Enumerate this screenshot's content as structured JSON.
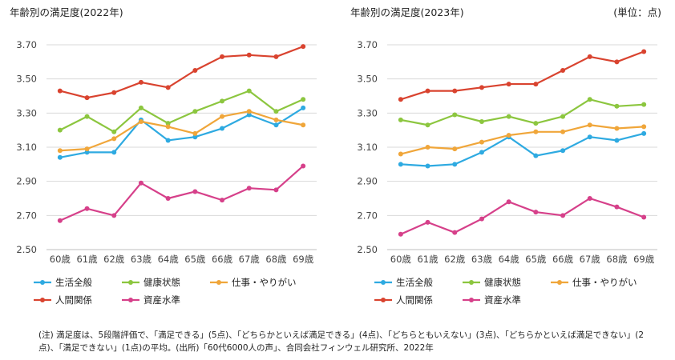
{
  "unit_label": "(単位：点)",
  "note": "(注)  満足度は、5段階評価で、「満足できる」(5点)、「どちらかといえば満足できる」(4点)、「どちらともいえない」(3点)、「どちらかといえば満足できない」(2点)、「満足できない」(1点)の平均。(出所)「60代6000人の声」、合同会社フィンウェル研究所、2022年",
  "chart_data": [
    {
      "type": "line",
      "title": "年齢別の満足度(2022年)",
      "xlabel": "",
      "ylabel": "",
      "categories": [
        "60歳",
        "61歳",
        "62歳",
        "63歳",
        "64歳",
        "65歳",
        "66歳",
        "67歳",
        "68歳",
        "69歳"
      ],
      "ylim": [
        2.5,
        3.7
      ],
      "yticks": [
        "2.50",
        "2.70",
        "2.90",
        "3.10",
        "3.30",
        "3.50",
        "3.70"
      ],
      "grid": true,
      "legend_position": "bottom",
      "series": [
        {
          "name": "生活全般",
          "color": "#2eaae1",
          "values": [
            3.04,
            3.07,
            3.07,
            3.26,
            3.14,
            3.16,
            3.21,
            3.29,
            3.23,
            3.33
          ]
        },
        {
          "name": "健康状態",
          "color": "#8cc63f",
          "values": [
            3.2,
            3.28,
            3.19,
            3.33,
            3.24,
            3.31,
            3.37,
            3.43,
            3.31,
            3.38
          ]
        },
        {
          "name": "仕事・やりがい",
          "color": "#f0a63a",
          "values": [
            3.08,
            3.09,
            3.15,
            3.25,
            3.22,
            3.18,
            3.28,
            3.31,
            3.26,
            3.23
          ]
        },
        {
          "name": "人間関係",
          "color": "#d9432f",
          "values": [
            3.43,
            3.39,
            3.42,
            3.48,
            3.45,
            3.55,
            3.63,
            3.64,
            3.63,
            3.69
          ]
        },
        {
          "name": "資産水準",
          "color": "#d6408a",
          "values": [
            2.67,
            2.74,
            2.7,
            2.89,
            2.8,
            2.84,
            2.79,
            2.86,
            2.85,
            2.99
          ]
        }
      ]
    },
    {
      "type": "line",
      "title": "年齢別の満足度(2023年)",
      "xlabel": "",
      "ylabel": "",
      "categories": [
        "60歳",
        "61歳",
        "62歳",
        "63歳",
        "64歳",
        "65歳",
        "66歳",
        "67歳",
        "68歳",
        "69歳"
      ],
      "ylim": [
        2.5,
        3.7
      ],
      "yticks": [
        "2.50",
        "2.70",
        "2.90",
        "3.10",
        "3.30",
        "3.50",
        "3.70"
      ],
      "grid": true,
      "legend_position": "bottom",
      "series": [
        {
          "name": "生活全般",
          "color": "#2eaae1",
          "values": [
            3.0,
            2.99,
            3.0,
            3.07,
            3.16,
            3.05,
            3.08,
            3.16,
            3.14,
            3.18
          ]
        },
        {
          "name": "健康状態",
          "color": "#8cc63f",
          "values": [
            3.26,
            3.23,
            3.29,
            3.25,
            3.28,
            3.24,
            3.28,
            3.38,
            3.34,
            3.35
          ]
        },
        {
          "name": "仕事・やりがい",
          "color": "#f0a63a",
          "values": [
            3.06,
            3.1,
            3.09,
            3.13,
            3.17,
            3.19,
            3.19,
            3.23,
            3.21,
            3.22
          ]
        },
        {
          "name": "人間関係",
          "color": "#d9432f",
          "values": [
            3.38,
            3.43,
            3.43,
            3.45,
            3.47,
            3.47,
            3.55,
            3.63,
            3.6,
            3.66
          ]
        },
        {
          "name": "資産水準",
          "color": "#d6408a",
          "values": [
            2.59,
            2.66,
            2.6,
            2.68,
            2.78,
            2.72,
            2.7,
            2.8,
            2.75,
            2.69
          ]
        }
      ]
    }
  ]
}
